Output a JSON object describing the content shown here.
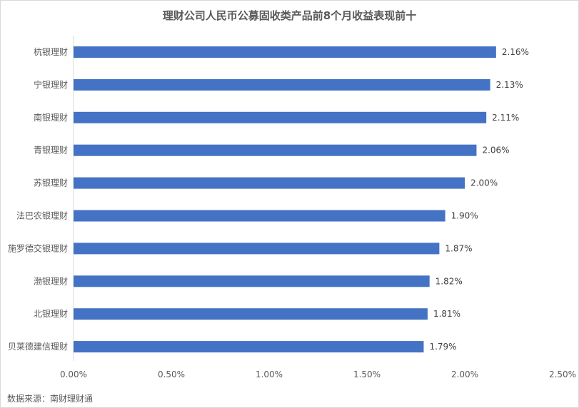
{
  "chart_data": {
    "type": "bar",
    "orientation": "horizontal",
    "title": "理财公司人民币公募固收类产品前8个月收益表现前十",
    "categories": [
      "杭银理财",
      "宁银理财",
      "南银理财",
      "青银理财",
      "苏银理财",
      "法巴农银理财",
      "施罗德交银理财",
      "渤银理财",
      "北银理财",
      "贝莱德建信理财"
    ],
    "values": [
      2.16,
      2.13,
      2.11,
      2.06,
      2.0,
      1.9,
      1.87,
      1.82,
      1.81,
      1.79
    ],
    "value_labels": [
      "2.16%",
      "2.13%",
      "2.11%",
      "2.06%",
      "2.00%",
      "1.90%",
      "1.87%",
      "1.82%",
      "1.81%",
      "1.79%"
    ],
    "x_ticks": [
      "0.00%",
      "0.50%",
      "1.00%",
      "1.50%",
      "2.00%",
      "2.50%"
    ],
    "xlim": [
      0,
      2.5
    ],
    "xlabel": "",
    "ylabel": "",
    "grid": false,
    "legend": "none",
    "bar_color": "#4472C4"
  },
  "source": "数据来源：南财理财通"
}
